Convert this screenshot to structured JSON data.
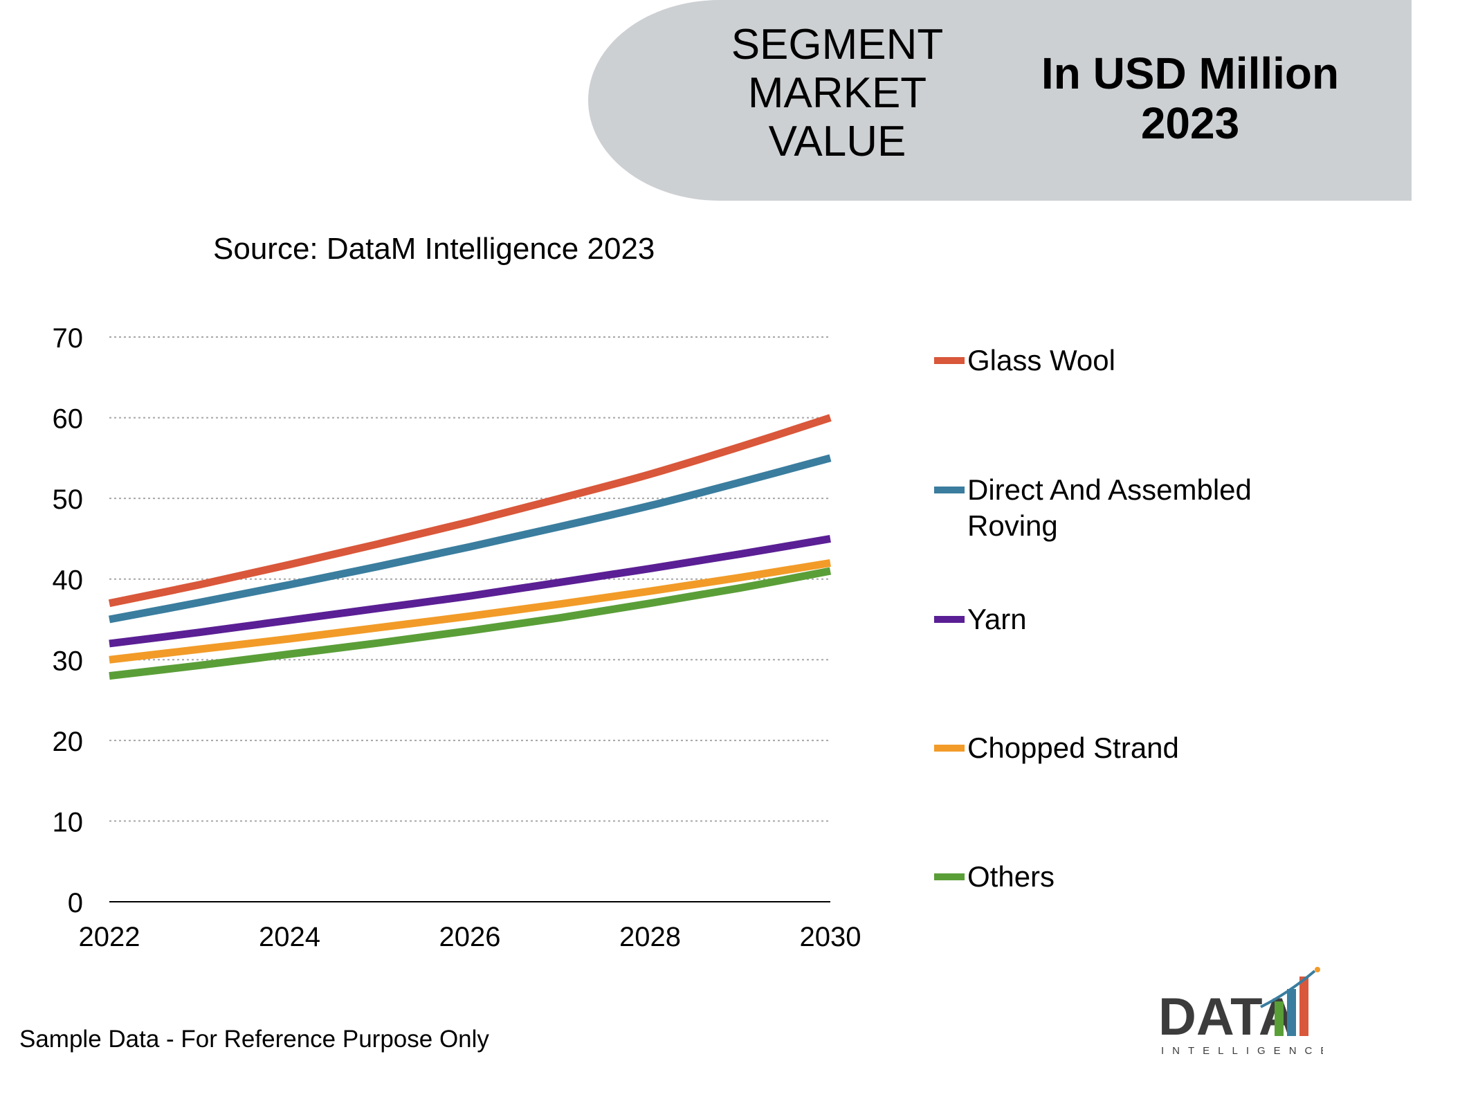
{
  "header": {
    "segment_label": "SEGMENT MARKET VALUE",
    "unit_label_line1": "In USD Million",
    "unit_label_line2": "2023"
  },
  "source": "Source: DataM Intelligence 2023",
  "footnote": "Sample Data - For Reference Purpose Only",
  "logo": {
    "word": "DATA",
    "sub": "INTELLIGENCE"
  },
  "colors": {
    "banner": "#cdd0d3",
    "grid": "#a6a6a6",
    "axis": "#000000"
  },
  "chart_data": {
    "type": "line",
    "title": "",
    "xlabel": "",
    "ylabel": "",
    "x": [
      2022,
      2023,
      2024,
      2025,
      2026,
      2027,
      2028,
      2029,
      2030
    ],
    "xticks": [
      "2022",
      "2024",
      "2026",
      "2028",
      "2030"
    ],
    "yticks": [
      "0",
      "10",
      "20",
      "30",
      "40",
      "50",
      "60",
      "70"
    ],
    "xlim": [
      2022,
      2030
    ],
    "ylim": [
      0,
      70
    ],
    "grid": true,
    "legend": "right",
    "series": [
      {
        "name": "Glass Wool",
        "color": "#d9573a",
        "values": [
          37,
          39.3,
          41.8,
          44.4,
          47.1,
          50.0,
          53.0,
          56.4,
          60.0
        ]
      },
      {
        "name": "Direct And Assembled Roving",
        "color": "#3a7d9e",
        "values": [
          35,
          37.1,
          39.3,
          41.6,
          44.0,
          46.5,
          49.1,
          52.0,
          55.0
        ]
      },
      {
        "name": "Yarn",
        "color": "#5a1f94",
        "values": [
          32,
          33.4,
          34.9,
          36.4,
          37.9,
          39.6,
          41.3,
          43.1,
          45.0
        ]
      },
      {
        "name": "Chopped Strand",
        "color": "#f29b28",
        "values": [
          30,
          31.3,
          32.6,
          34.0,
          35.4,
          36.9,
          38.5,
          40.2,
          42.0
        ]
      },
      {
        "name": "Others",
        "color": "#5a9e38",
        "values": [
          28,
          29.3,
          30.7,
          32.1,
          33.6,
          35.2,
          37.0,
          38.9,
          41.0
        ]
      }
    ]
  }
}
